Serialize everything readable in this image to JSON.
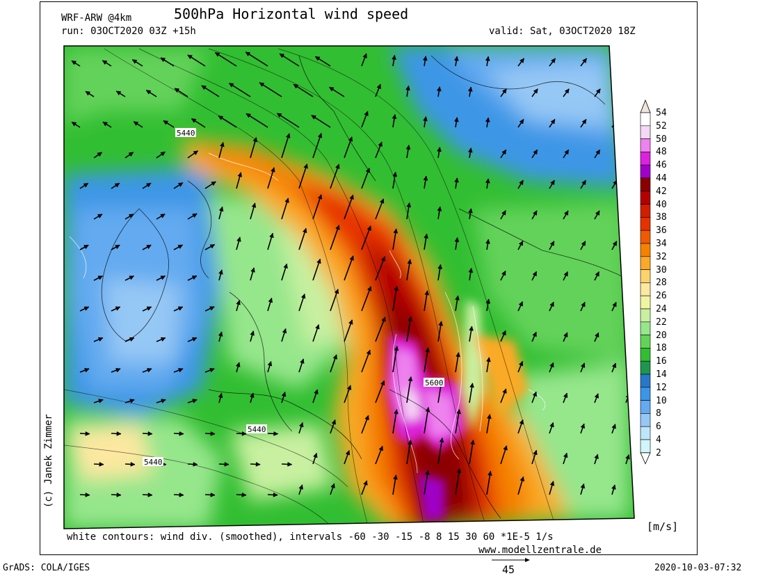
{
  "header": {
    "model": "WRF-ARW @4km",
    "title": "500hPa Horizontal wind speed",
    "run": "run: 03OCT2020 03Z +15h",
    "valid": "valid: Sat, 03OCT2020 18Z"
  },
  "footer": {
    "contours": "white contours: wind div. (smoothed), intervals -60 -30 -15 -8 8 15 30 60 *1E-5 1/s",
    "website": "www.modellzentrale.de",
    "copyright": "(c) Janek Zimmer",
    "grads": "GrADS: COLA/IGES",
    "timestamp": "2020-10-03-07:32",
    "reference_vector": "45"
  },
  "colorbar": {
    "unit": "[m/s]",
    "levels": [
      "54",
      "52",
      "50",
      "48",
      "46",
      "44",
      "42",
      "40",
      "38",
      "36",
      "34",
      "32",
      "30",
      "28",
      "26",
      "24",
      "22",
      "20",
      "18",
      "16",
      "14",
      "12",
      "10",
      "8",
      "6",
      "4",
      "2"
    ],
    "colors": [
      "#ffffff",
      "#f4d8f4",
      "#ee82ee",
      "#dd22dd",
      "#a000c8",
      "#8c0000",
      "#b40000",
      "#d21e00",
      "#e63200",
      "#f05a00",
      "#f58200",
      "#faaa28",
      "#fbd26e",
      "#fde8a0",
      "#f0f5a0",
      "#c8f0a0",
      "#96e68c",
      "#64d25a",
      "#32be32",
      "#1e9650",
      "#2878c8",
      "#3c96e6",
      "#64aaf0",
      "#96c8f5",
      "#bee6fa",
      "#d2f5fa"
    ]
  },
  "map": {
    "contour_labels": [
      {
        "text": "5440"
      },
      {
        "text": "5440"
      },
      {
        "text": "5440"
      },
      {
        "text": "5600"
      }
    ]
  }
}
